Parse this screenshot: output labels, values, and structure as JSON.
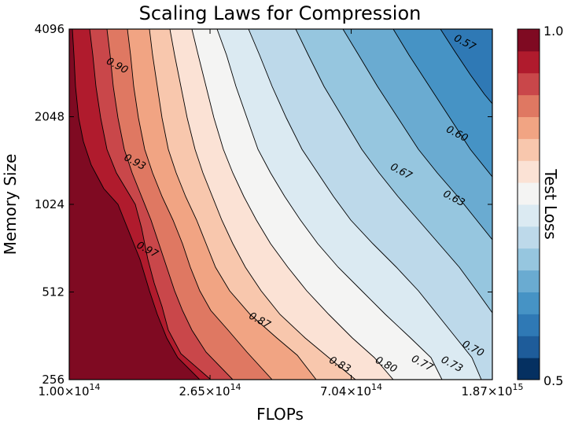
{
  "chart_data": {
    "type": "contour",
    "title": "Scaling Laws for Compression",
    "xlabel": "FLOPs",
    "ylabel": "Memory Size",
    "x_scale": "log",
    "y_scale": "log",
    "xlim": [
      100000000000000.0,
      1870000000000000.0
    ],
    "ylim": [
      256,
      4096
    ],
    "x_ticks": [
      100000000000000.0,
      265000000000000.0,
      704000000000000.0,
      1870000000000000.0
    ],
    "x_tick_labels": [
      "1.00×10",
      "2.65×10",
      "7.04×10",
      "1.87×10"
    ],
    "x_tick_exponents": [
      "14",
      "14",
      "14",
      "15"
    ],
    "y_ticks": [
      256,
      512,
      1024,
      2048,
      4096
    ],
    "y_tick_labels": [
      "256",
      "512",
      "1024",
      "2048",
      "4096"
    ],
    "colorbar": {
      "label": "Test Loss",
      "range": [
        0.5,
        1.0
      ],
      "tick_labels": [
        "1.0",
        "0.5"
      ],
      "levels": 14,
      "colors": [
        "#053061",
        "#1e5c9a",
        "#2f79b5",
        "#4693c5",
        "#6aabd1",
        "#96c6df",
        "#bdd9ea",
        "#dbeaf2",
        "#f4f4f3",
        "#fbe2d5",
        "#f8c7ad",
        "#f1a483",
        "#df7862",
        "#c9474a",
        "#b01b2d",
        "#7f0a22"
      ]
    },
    "contour_labels": [
      {
        "text": "0.90",
        "x": 138000000000000.0,
        "y": 3000
      },
      {
        "text": "0.93",
        "x": 156000000000000.0,
        "y": 1400
      },
      {
        "text": "0.97",
        "x": 170000000000000.0,
        "y": 700
      },
      {
        "text": "0.87",
        "x": 370000000000000.0,
        "y": 400
      },
      {
        "text": "0.83",
        "x": 645000000000000.0,
        "y": 282
      },
      {
        "text": "0.80",
        "x": 888000000000000.0,
        "y": 282
      },
      {
        "text": "0.77",
        "x": 1140000000000000.0,
        "y": 285
      },
      {
        "text": "0.73",
        "x": 1400000000000000.0,
        "y": 283
      },
      {
        "text": "0.70",
        "x": 1620000000000000.0,
        "y": 320
      },
      {
        "text": "0.67",
        "x": 985000000000000.0,
        "y": 1300
      },
      {
        "text": "0.63",
        "x": 1420000000000000.0,
        "y": 1050
      },
      {
        "text": "0.60",
        "x": 1450000000000000.0,
        "y": 1750
      },
      {
        "text": "0.57",
        "x": 1530000000000000.0,
        "y": 3600
      }
    ]
  }
}
